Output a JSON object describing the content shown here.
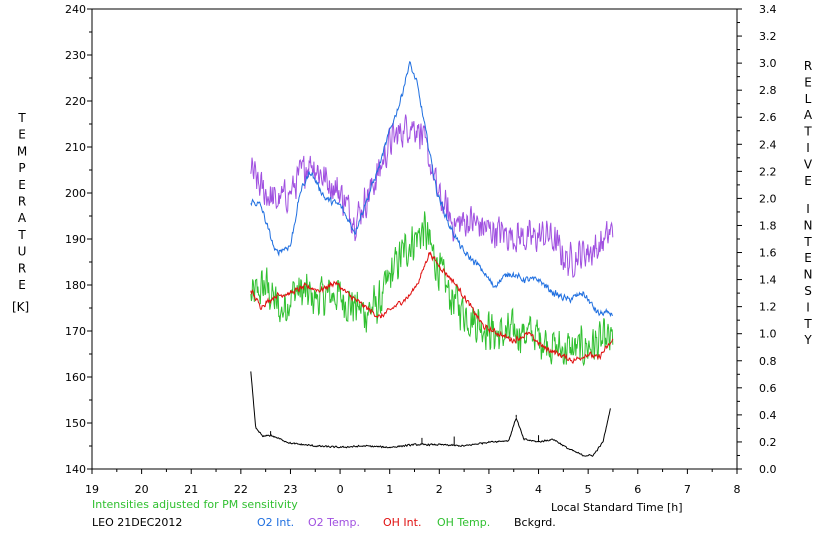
{
  "chart_data": {
    "type": "line",
    "left_axis": {
      "letters": [
        "T",
        "E",
        "M",
        "P",
        "E",
        "R",
        "A",
        "T",
        "U",
        "R",
        "E"
      ],
      "unit": "[K]",
      "range": [
        140,
        240
      ],
      "ticks": [
        140,
        150,
        160,
        170,
        180,
        190,
        200,
        210,
        220,
        230,
        240
      ]
    },
    "right_axis": {
      "letters": [
        "R",
        "E",
        "L",
        "A",
        "T",
        "I",
        "V",
        "E"
      ],
      "letters2": [
        "I",
        "N",
        "T",
        "E",
        "N",
        "S",
        "I",
        "T",
        "Y"
      ],
      "range": [
        0.0,
        3.4
      ],
      "ticks": [
        "0.0",
        "0.2",
        "0.4",
        "0.6",
        "0.8",
        "1.0",
        "1.2",
        "1.4",
        "1.6",
        "1.8",
        "2.0",
        "2.2",
        "2.4",
        "2.6",
        "2.8",
        "3.0",
        "3.2",
        "3.4"
      ]
    },
    "x_axis": {
      "label": "Local Standard Time [h]",
      "tick_labels": [
        "19",
        "20",
        "21",
        "22",
        "23",
        "0",
        "1",
        "2",
        "3",
        "4",
        "5",
        "6",
        "7",
        "8"
      ],
      "range": [
        19,
        32
      ]
    },
    "note": "Intensities adjusted for PM sensitivity",
    "station": "LEO 21DEC2012",
    "legend": [
      {
        "name": "O2 Int.",
        "color": "#1f6fe0"
      },
      {
        "name": "O2 Temp.",
        "color": "#a050e0"
      },
      {
        "name": "OH Int.",
        "color": "#e01010"
      },
      {
        "name": "OH Temp.",
        "color": "#30c030"
      },
      {
        "name": "Bckgrd.",
        "color": "#000000"
      }
    ],
    "series": [
      {
        "name": "O2 Int.",
        "axis": "right",
        "color": "#1f6fe0",
        "noise": 0.03,
        "points": [
          [
            22.2,
            1.98
          ],
          [
            22.4,
            1.95
          ],
          [
            22.7,
            1.6
          ],
          [
            23.0,
            1.65
          ],
          [
            23.2,
            2.05
          ],
          [
            23.4,
            2.2
          ],
          [
            23.7,
            2.0
          ],
          [
            24.0,
            1.95
          ],
          [
            24.3,
            1.75
          ],
          [
            24.5,
            1.95
          ],
          [
            24.8,
            2.25
          ],
          [
            25.0,
            2.5
          ],
          [
            25.2,
            2.7
          ],
          [
            25.4,
            3.0
          ],
          [
            25.55,
            2.85
          ],
          [
            25.75,
            2.45
          ],
          [
            25.95,
            2.05
          ],
          [
            26.2,
            1.8
          ],
          [
            26.5,
            1.6
          ],
          [
            26.8,
            1.5
          ],
          [
            27.1,
            1.35
          ],
          [
            27.4,
            1.45
          ],
          [
            27.7,
            1.4
          ],
          [
            28.0,
            1.4
          ],
          [
            28.3,
            1.3
          ],
          [
            28.6,
            1.25
          ],
          [
            28.9,
            1.3
          ],
          [
            29.2,
            1.15
          ],
          [
            29.5,
            1.15
          ]
        ]
      },
      {
        "name": "O2 Temp.",
        "axis": "left",
        "color": "#a050e0",
        "noise": 4.5,
        "points": [
          [
            22.2,
            205
          ],
          [
            22.4,
            201
          ],
          [
            22.7,
            198
          ],
          [
            23.0,
            200
          ],
          [
            23.2,
            204
          ],
          [
            23.4,
            207
          ],
          [
            23.7,
            203
          ],
          [
            24.0,
            200
          ],
          [
            24.3,
            194
          ],
          [
            24.5,
            198
          ],
          [
            24.8,
            205
          ],
          [
            25.0,
            211
          ],
          [
            25.2,
            213
          ],
          [
            25.4,
            215
          ],
          [
            25.6,
            214
          ],
          [
            25.8,
            207
          ],
          [
            26.0,
            199
          ],
          [
            26.3,
            193
          ],
          [
            26.6,
            194
          ],
          [
            27.0,
            192
          ],
          [
            27.4,
            191
          ],
          [
            27.8,
            190
          ],
          [
            28.2,
            191
          ],
          [
            28.6,
            185
          ],
          [
            28.9,
            187
          ],
          [
            29.2,
            188
          ],
          [
            29.5,
            192
          ]
        ]
      },
      {
        "name": "OH Int.",
        "axis": "right",
        "color": "#e01010",
        "noise": 0.025,
        "points": [
          [
            22.2,
            1.32
          ],
          [
            22.4,
            1.2
          ],
          [
            22.7,
            1.28
          ],
          [
            23.0,
            1.3
          ],
          [
            23.3,
            1.35
          ],
          [
            23.6,
            1.32
          ],
          [
            23.9,
            1.38
          ],
          [
            24.2,
            1.28
          ],
          [
            24.5,
            1.2
          ],
          [
            24.8,
            1.12
          ],
          [
            25.1,
            1.2
          ],
          [
            25.4,
            1.28
          ],
          [
            25.6,
            1.4
          ],
          [
            25.8,
            1.6
          ],
          [
            26.0,
            1.5
          ],
          [
            26.3,
            1.38
          ],
          [
            26.6,
            1.22
          ],
          [
            26.9,
            1.05
          ],
          [
            27.2,
            1.0
          ],
          [
            27.5,
            0.95
          ],
          [
            27.8,
            1.0
          ],
          [
            28.1,
            0.9
          ],
          [
            28.4,
            0.85
          ],
          [
            28.7,
            0.8
          ],
          [
            29.0,
            0.85
          ],
          [
            29.2,
            0.82
          ],
          [
            29.5,
            0.95
          ]
        ]
      },
      {
        "name": "OH Temp.",
        "axis": "left",
        "color": "#30c030",
        "noise": 5.5,
        "points": [
          [
            22.2,
            177
          ],
          [
            22.5,
            180
          ],
          [
            22.8,
            174
          ],
          [
            23.1,
            179
          ],
          [
            23.5,
            177
          ],
          [
            23.9,
            178
          ],
          [
            24.2,
            176
          ],
          [
            24.5,
            174
          ],
          [
            24.8,
            176
          ],
          [
            25.1,
            184
          ],
          [
            25.4,
            189
          ],
          [
            25.7,
            192
          ],
          [
            25.9,
            186
          ],
          [
            26.2,
            178
          ],
          [
            26.6,
            173
          ],
          [
            26.9,
            171
          ],
          [
            27.2,
            169
          ],
          [
            27.6,
            170
          ],
          [
            28.0,
            169
          ],
          [
            28.4,
            166
          ],
          [
            28.8,
            166
          ],
          [
            29.1,
            167
          ],
          [
            29.5,
            168
          ]
        ]
      },
      {
        "name": "Bckgrd.",
        "axis": "right",
        "color": "#000000",
        "noise": 0.008,
        "points": [
          [
            22.2,
            0.72
          ],
          [
            22.3,
            0.3
          ],
          [
            22.45,
            0.24
          ],
          [
            22.6,
            0.25
          ],
          [
            23.0,
            0.19
          ],
          [
            23.5,
            0.17
          ],
          [
            24.0,
            0.16
          ],
          [
            24.5,
            0.17
          ],
          [
            25.0,
            0.16
          ],
          [
            25.5,
            0.18
          ],
          [
            26.0,
            0.18
          ],
          [
            26.5,
            0.17
          ],
          [
            27.0,
            0.2
          ],
          [
            27.4,
            0.21
          ],
          [
            27.55,
            0.38
          ],
          [
            27.7,
            0.22
          ],
          [
            28.0,
            0.2
          ],
          [
            28.3,
            0.22
          ],
          [
            28.6,
            0.15
          ],
          [
            28.9,
            0.1
          ],
          [
            29.1,
            0.1
          ],
          [
            29.3,
            0.2
          ],
          [
            29.45,
            0.45
          ]
        ]
      }
    ],
    "spikes": [
      {
        "series": "Bckgrd.",
        "x": 22.6,
        "y": 0.28
      },
      {
        "series": "Bckgrd.",
        "x": 25.65,
        "y": 0.23
      },
      {
        "series": "Bckgrd.",
        "x": 26.3,
        "y": 0.24
      },
      {
        "series": "Bckgrd.",
        "x": 27.55,
        "y": 0.4
      },
      {
        "series": "Bckgrd.",
        "x": 28.0,
        "y": 0.25
      }
    ]
  }
}
